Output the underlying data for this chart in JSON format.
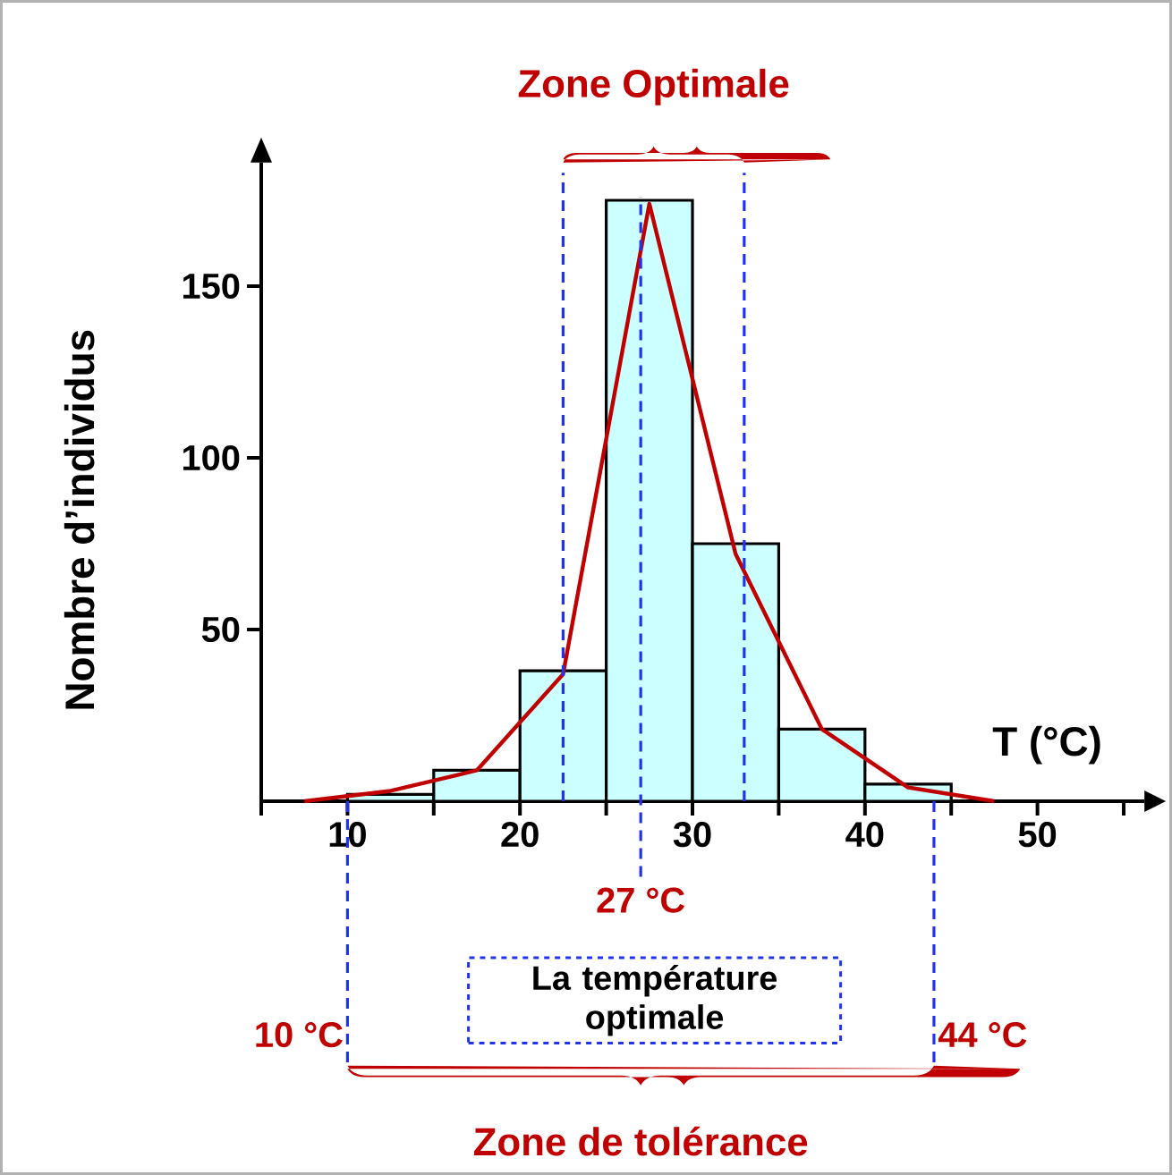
{
  "chart_data": {
    "type": "histogram",
    "xlabel": "T (°C)",
    "ylabel": "Nombre d’individus",
    "bins": [
      10,
      15,
      20,
      25,
      30,
      35,
      40,
      45
    ],
    "series": [
      {
        "type": "histogram",
        "color": "#ccffff",
        "values": [
          2,
          9,
          38,
          175,
          75,
          21,
          5
        ]
      },
      {
        "type": "line",
        "color": "#c00000",
        "x": [
          7.5,
          12.5,
          17.5,
          22.5,
          27.5,
          32.5,
          37.5,
          42.5,
          47.5
        ],
        "values": [
          0,
          3,
          9,
          37,
          174,
          72,
          21,
          4,
          0
        ]
      }
    ],
    "xlim": [
      5,
      56.2
    ],
    "ylim": [
      0,
      186
    ],
    "xticks": [
      {
        "value": 5,
        "label": null
      },
      10,
      {
        "value": 15,
        "label": null
      },
      20,
      {
        "value": 25,
        "label": null
      },
      30,
      {
        "value": 35,
        "label": null
      },
      40,
      {
        "value": 45,
        "label": null
      },
      50,
      {
        "value": 55,
        "label": null
      }
    ],
    "yticks": [
      50,
      100,
      150
    ],
    "ref_lines": [
      {
        "axis": "x",
        "value": 22.5,
        "color": "#2233ee",
        "line_style": "dashed"
      },
      {
        "axis": "x",
        "value": 27,
        "label": "27 °C",
        "color": "#2233ee",
        "line_style": "dashed"
      },
      {
        "axis": "x",
        "value": 33,
        "color": "#2233ee",
        "line_style": "dashed"
      },
      {
        "axis": "x",
        "value": 10,
        "label": "10 °C",
        "color": "#2233ee",
        "line_style": "dashed"
      },
      {
        "axis": "x",
        "value": 44,
        "label": "44 °C",
        "color": "#2233ee",
        "line_style": "dashed"
      }
    ],
    "annotations": [
      "Zone Optimale",
      "La température optimale",
      "Zone de tolérance"
    ],
    "grid": false,
    "marker": "none",
    "line_style": "solid"
  }
}
